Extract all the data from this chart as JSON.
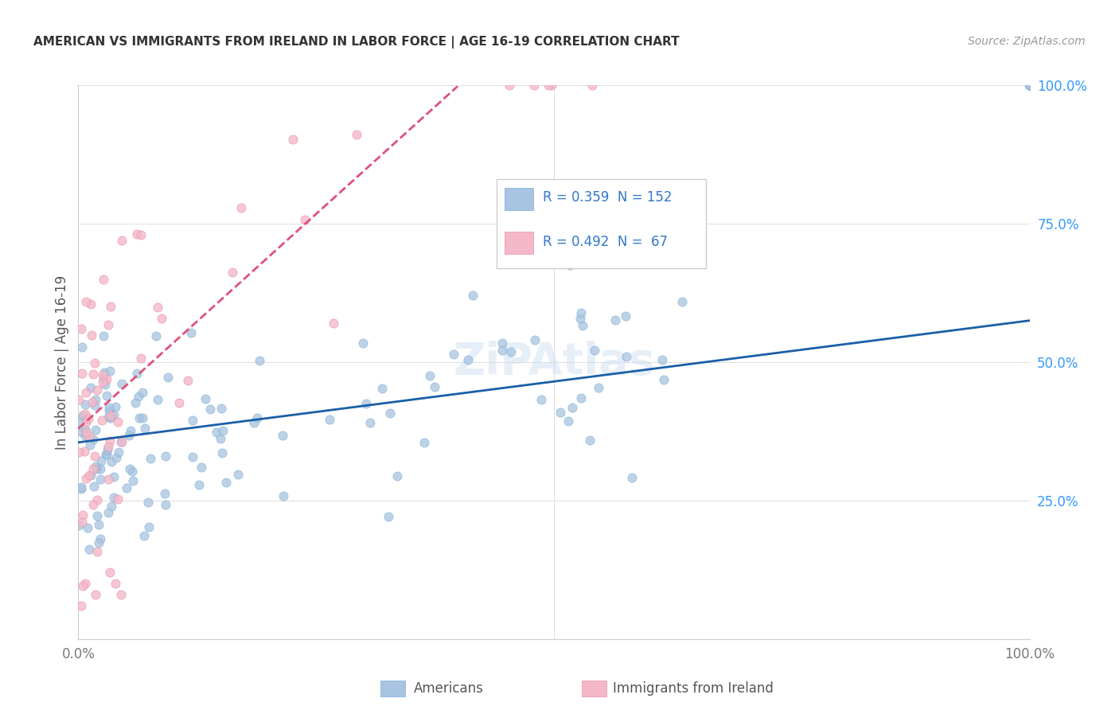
{
  "title": "AMERICAN VS IMMIGRANTS FROM IRELAND IN LABOR FORCE | AGE 16-19 CORRELATION CHART",
  "source": "Source: ZipAtlas.com",
  "ylabel": "In Labor Force | Age 16-19",
  "watermark": "ZiPAtlas",
  "legend_blue_r": "0.359",
  "legend_blue_n": "152",
  "legend_pink_r": "0.492",
  "legend_pink_n": " 67",
  "legend_label_blue": "Americans",
  "legend_label_pink": "Immigrants from Ireland",
  "blue_color": "#a8c4e0",
  "blue_edge_color": "#7aadd4",
  "blue_line_color": "#1a5fa8",
  "pink_color": "#f4b8c8",
  "pink_edge_color": "#e890a8",
  "pink_line_color": "#e0507a",
  "background_color": "#ffffff",
  "grid_color": "#dddddd",
  "blue_intercept": 0.355,
  "blue_slope": 0.22,
  "pink_intercept": 0.38,
  "pink_slope": 1.55,
  "title_color": "#333333",
  "source_color": "#999999",
  "axis_label_color": "#555555",
  "ytick_color": "#3399ff",
  "xtick_color": "#777777"
}
